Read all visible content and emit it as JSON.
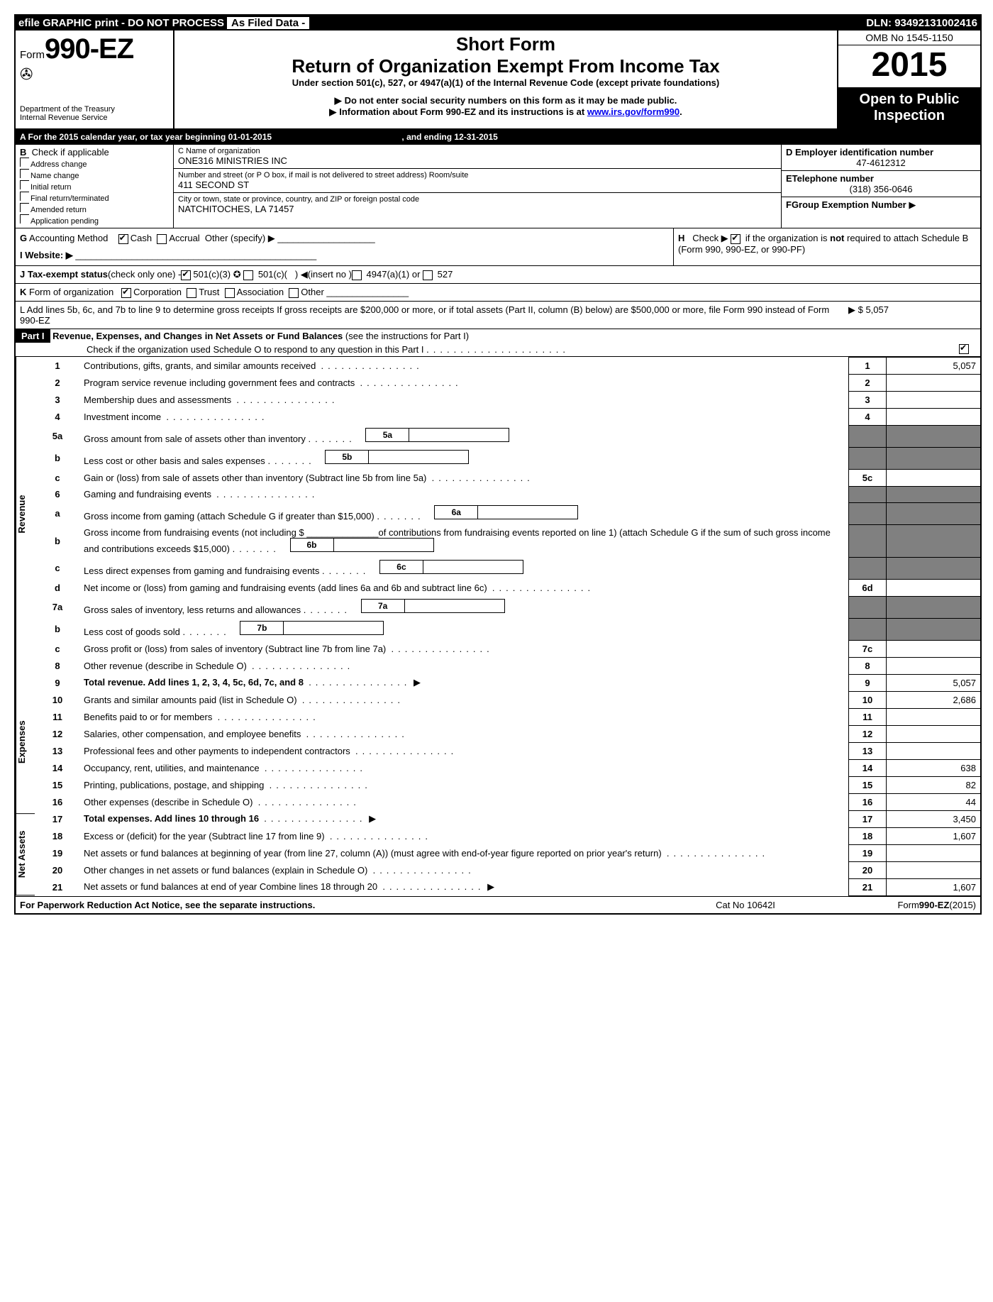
{
  "topbar": {
    "efile": "efile GRAPHIC print - DO NOT PROCESS",
    "asfiled": "As Filed Data -",
    "dln": "DLN: 93492131002416"
  },
  "header": {
    "form_prefix": "Form",
    "form_number": "990-EZ",
    "dept1": "Department of the Treasury",
    "dept2": "Internal Revenue Service",
    "short_form": "Short Form",
    "return_title": "Return of Organization Exempt From Income Tax",
    "under": "Under section 501(c), 527, or 4947(a)(1) of the Internal Revenue Code (except private foundations)",
    "note1": "Do not enter social security numbers on this form as it may be made public.",
    "note2_pre": "Information about Form 990-EZ and its instructions is at ",
    "note2_link": "www.irs.gov/form990",
    "omb": "OMB No 1545-1150",
    "year": "2015",
    "open1": "Open to Public",
    "open2": "Inspection"
  },
  "rowA": {
    "text_pre": "A  For the 2015 calendar year, or tax year beginning ",
    "begin": "01-01-2015",
    "mid": " , and ending ",
    "end": "12-31-2015"
  },
  "boxB": {
    "title": "B",
    "sub": "Check if applicable",
    "items": [
      "Address change",
      "Name change",
      "Initial return",
      "Final return/terminated",
      "Amended return",
      "Application pending"
    ]
  },
  "boxC": {
    "label_name": "C Name of organization",
    "name": "ONE316 MINISTRIES INC",
    "label_addr": "Number and street (or P  O  box, if mail is not delivered to street address) Room/suite",
    "addr": "411 SECOND ST",
    "label_city": "City or town, state or province, country, and ZIP or foreign postal code",
    "city": "NATCHITOCHES, LA  71457"
  },
  "boxD": {
    "label": "D Employer identification number",
    "val": "47-4612312"
  },
  "boxE": {
    "label": "ETelephone number",
    "val": "(318) 356-0646"
  },
  "boxF": {
    "label": "FGroup Exemption Number",
    "arrow": "▶"
  },
  "rowG": "G Accounting Method    ☑Cash  ☐Accrual  Other (specify) ▶",
  "rowH": "H   Check ▶ ☑ if the organization is not required to attach Schedule B (Form 990, 990-EZ, or 990-PF)",
  "rowI": "I Website: ▶",
  "rowJ": "J Tax-exempt status(check only one) -☑501(c)(3) ✪ ☐ 501(c)(   ) ◀(insert no )☐ 4947(a)(1) or ☐ 527",
  "rowK": "K Form of organization   ☑Corporation  ☐Trust  ☐Association  ☐Other",
  "rowL": {
    "text": "L Add lines 5b, 6c, and 7b to line 9 to determine gross receipts If gross receipts are $200,000 or more, or if total assets (Part II, column (B) below) are $500,000 or more, file Form 990 instead of Form 990-EZ",
    "amt": "▶ $ 5,057"
  },
  "part1": {
    "label": "Part I",
    "title": "Revenue, Expenses, and Changes in Net Assets or Fund Balances",
    "sub": "(see the instructions for Part I)",
    "check": "Check if the organization used Schedule O to respond to any question in this Part I"
  },
  "sideLabels": {
    "rev": "Revenue",
    "exp": "Expenses",
    "net": "Net Assets"
  },
  "lines": [
    {
      "n": "1",
      "desc": "Contributions, gifts, grants, and similar amounts received",
      "box": "1",
      "amt": "5,057"
    },
    {
      "n": "2",
      "desc": "Program service revenue including government fees and contracts",
      "box": "2",
      "amt": ""
    },
    {
      "n": "3",
      "desc": "Membership dues and assessments",
      "box": "3",
      "amt": ""
    },
    {
      "n": "4",
      "desc": "Investment income",
      "box": "4",
      "amt": ""
    },
    {
      "n": "5a",
      "desc": "Gross amount from sale of assets other than inventory",
      "sub": "5a",
      "box": "",
      "amt": "",
      "grey": true
    },
    {
      "n": "b",
      "desc": "Less  cost or other basis and sales expenses",
      "sub": "5b",
      "box": "",
      "amt": "",
      "grey": true
    },
    {
      "n": "c",
      "desc": "Gain or (loss) from sale of assets other than inventory (Subtract line 5b from line 5a)",
      "box": "5c",
      "amt": ""
    },
    {
      "n": "6",
      "desc": "Gaming and fundraising events",
      "box": "",
      "amt": "",
      "grey": true,
      "noline": true
    },
    {
      "n": "a",
      "desc": "Gross income from gaming (attach Schedule G if greater than $15,000)",
      "sub": "6a",
      "box": "",
      "amt": "",
      "grey": true
    },
    {
      "n": "b",
      "desc": "Gross income from fundraising events (not including $ ______________of contributions from fundraising events reported on line 1) (attach Schedule G if the sum of such gross income and contributions exceeds $15,000)",
      "sub": "6b",
      "box": "",
      "amt": "",
      "grey": true
    },
    {
      "n": "c",
      "desc": "Less  direct expenses from gaming and fundraising events",
      "sub": "6c",
      "box": "",
      "amt": "",
      "grey": true
    },
    {
      "n": "d",
      "desc": "Net income or (loss) from gaming and fundraising events (add lines 6a and 6b and subtract line 6c)",
      "box": "6d",
      "amt": ""
    },
    {
      "n": "7a",
      "desc": "Gross sales of inventory, less returns and allowances",
      "sub": "7a",
      "box": "",
      "amt": "",
      "grey": true
    },
    {
      "n": "b",
      "desc": "Less  cost of goods sold",
      "sub": "7b",
      "box": "",
      "amt": "",
      "grey": true
    },
    {
      "n": "c",
      "desc": "Gross profit or (loss) from sales of inventory (Subtract line 7b from line 7a)",
      "box": "7c",
      "amt": ""
    },
    {
      "n": "8",
      "desc": "Other revenue (describe in Schedule O)",
      "box": "8",
      "amt": ""
    },
    {
      "n": "9",
      "desc": "Total revenue. Add lines 1, 2, 3, 4, 5c, 6d, 7c, and 8",
      "box": "9",
      "amt": "5,057",
      "arrow": true,
      "bold": true
    },
    {
      "n": "10",
      "desc": "Grants and similar amounts paid (list in Schedule O)",
      "box": "10",
      "amt": "2,686"
    },
    {
      "n": "11",
      "desc": "Benefits paid to or for members",
      "box": "11",
      "amt": ""
    },
    {
      "n": "12",
      "desc": "Salaries, other compensation, and employee benefits",
      "box": "12",
      "amt": ""
    },
    {
      "n": "13",
      "desc": "Professional fees and other payments to independent contractors",
      "box": "13",
      "amt": ""
    },
    {
      "n": "14",
      "desc": "Occupancy, rent, utilities, and maintenance",
      "box": "14",
      "amt": "638"
    },
    {
      "n": "15",
      "desc": "Printing, publications, postage, and shipping",
      "box": "15",
      "amt": "82"
    },
    {
      "n": "16",
      "desc": "Other expenses (describe in Schedule O)",
      "box": "16",
      "amt": "44"
    },
    {
      "n": "17",
      "desc": "Total expenses. Add lines 10 through 16",
      "box": "17",
      "amt": "3,450",
      "arrow": true,
      "bold": true
    },
    {
      "n": "18",
      "desc": "Excess or (deficit) for the year (Subtract line 17 from line 9)",
      "box": "18",
      "amt": "1,607"
    },
    {
      "n": "19",
      "desc": "Net assets or fund balances at beginning of year (from line 27, column (A)) (must agree with end-of-year figure reported on prior year's return)",
      "box": "19",
      "amt": ""
    },
    {
      "n": "20",
      "desc": "Other changes in net assets or fund balances (explain in Schedule O)",
      "box": "20",
      "amt": ""
    },
    {
      "n": "21",
      "desc": "Net assets or fund balances at end of year Combine lines 18 through 20",
      "box": "21",
      "amt": "1,607",
      "arrow": true
    }
  ],
  "footer": {
    "left": "For Paperwork Reduction Act Notice, see the separate instructions.",
    "mid": "Cat No 10642I",
    "right": "Form990-EZ(2015)"
  }
}
